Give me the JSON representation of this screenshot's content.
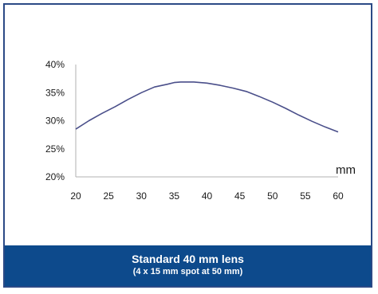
{
  "chart_data": {
    "type": "line",
    "title": "",
    "xlabel": "mm",
    "ylabel": "",
    "xlim": [
      20,
      60
    ],
    "ylim": [
      20,
      40
    ],
    "x_ticks": [
      "20",
      "25",
      "30",
      "35",
      "40",
      "45",
      "50",
      "55",
      "60"
    ],
    "y_ticks": [
      "40%",
      "35%",
      "30%",
      "25%",
      "20%"
    ],
    "grid": false,
    "series": [
      {
        "color": "#4a4f8a",
        "x": [
          20,
          22,
          24,
          26,
          28,
          30,
          32,
          34,
          35,
          36,
          38,
          40,
          42,
          44,
          46,
          48,
          50,
          52,
          54,
          56,
          58,
          60
        ],
        "y": [
          28.5,
          30.0,
          31.3,
          32.5,
          33.8,
          35.0,
          36.0,
          36.5,
          36.8,
          36.9,
          36.9,
          36.7,
          36.3,
          35.8,
          35.2,
          34.3,
          33.3,
          32.2,
          31.0,
          29.9,
          28.9,
          28.0
        ]
      }
    ]
  },
  "caption": {
    "line1": "Standard 40 mm lens",
    "line2": "(4 x 15 mm spot at 50 mm)"
  },
  "colors": {
    "border": "#2b4a86",
    "caption_bg": "#0d4a8c",
    "axis": "#b0b0b0"
  }
}
